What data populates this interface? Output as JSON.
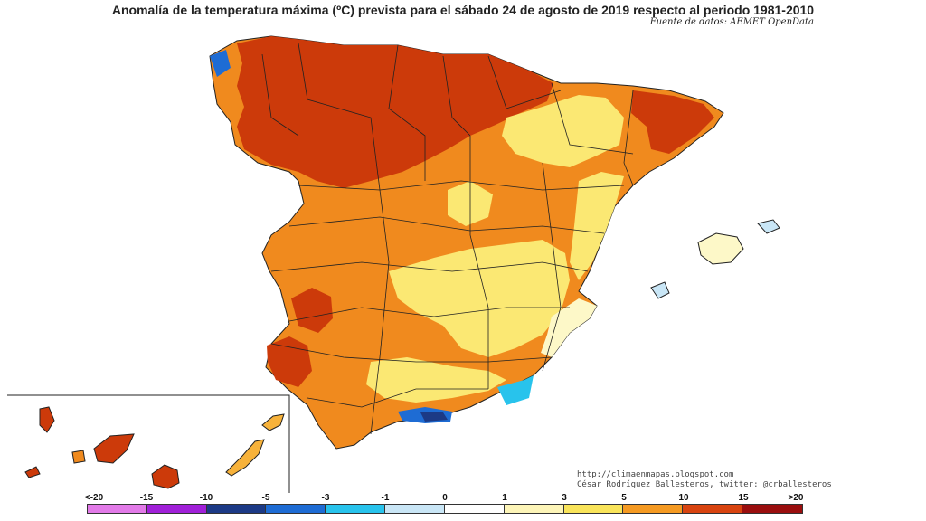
{
  "title": "Anomalía de la temperatura máxima (ºC) prevista para el sábado 24 de agosto de 2019 respecto al periodo 1981-2010",
  "source": "Fuente de datos: AEMET OpenData",
  "credits": {
    "line1": "http://climaenmapas.blogspot.com",
    "line2": "César Rodríguez Ballesteros, twitter: @crballesteros"
  },
  "legend": {
    "labels": [
      "<-20",
      "-15",
      "-10",
      "-5",
      "-3",
      "-1",
      "0",
      "1",
      "3",
      "5",
      "10",
      "15",
      ">20"
    ],
    "colors": [
      "#e27ae8",
      "#a020d8",
      "#1c3a86",
      "#1e6cd4",
      "#28c3ec",
      "#c9e6f6",
      "#ffffff",
      "#fdf5b8",
      "#f9e45a",
      "#f59a22",
      "#d84410",
      "#9a0e0e",
      "#6b3a0a"
    ]
  },
  "map_colors": {
    "water": "#ffffff",
    "border": "#222222",
    "anom_gt_10": "#cc3a0a",
    "anom_5_10": "#f08a1e",
    "anom_3_5": "#f7b23a",
    "anom_1_3": "#fbe873",
    "anom_0_1": "#fdf8c8",
    "anom_neg_3_0": "#28c3ec",
    "anom_neg_5_3": "#1e6cd4",
    "anom_neg_10_5": "#1c3a86",
    "anom_10_15": "#9a0e0e"
  }
}
